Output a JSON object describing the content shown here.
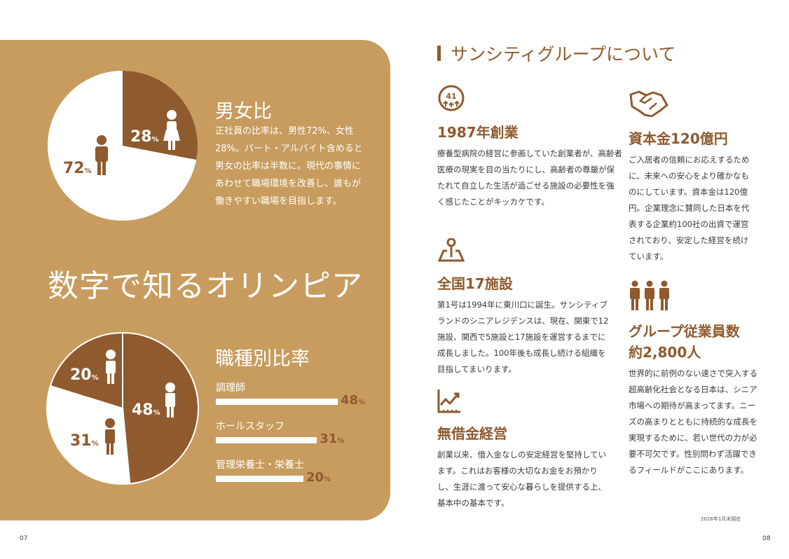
{
  "left": {
    "gender": {
      "title": "男女比",
      "text": "正社員の比率は、男性72%、女性28%。パート・アルバイト含めると男女の比率は半数に。現代の事情にあわせて職場環境を改善し、誰もが働きやすい職場を目指します。",
      "male": {
        "value": "72",
        "unit": "%"
      },
      "female": {
        "value": "28",
        "unit": "%"
      }
    },
    "headline": "数字で知るオリンピア",
    "jobs": {
      "title": "職種別比率",
      "items": [
        {
          "label": "調理師",
          "value": 48,
          "pct": "48",
          "unit": "%"
        },
        {
          "label": "ホールスタッフ",
          "value": 31,
          "pct": "31",
          "unit": "%"
        },
        {
          "label": "管理栄養士・栄養士",
          "value": 20,
          "pct": "20",
          "unit": "%"
        }
      ]
    },
    "page": "07",
    "colors": {
      "panel": "#c79c5e",
      "brown": "#8f5a2e",
      "white": "#ffffff"
    }
  },
  "right": {
    "title": "サンシティグループについて",
    "items": [
      {
        "icon": "anniversary-41-icon",
        "icon_text": "41",
        "title": "1987年創業",
        "text": "療養型病院の経営に参画していた創業者が、高齢者医療の現実を目の当たりにし、高齢者の尊厳が保たれて自立した生活が過ごせる施設の必要性を強く感じたことがキッカケです。"
      },
      {
        "icon": "handshake-icon",
        "title": "資本金120億円",
        "text": "ご入居者の信頼にお応えするために、未来への安心をより確かなものにしています。資本金は120億円。企業理念に賛同した日本を代表する企業約100社の出資で運営されており、安定した経営を続けています。"
      },
      {
        "icon": "map-pin-icon",
        "title": "全国17施設",
        "text": "第1号は1994年に東川口に誕生。サンシティブランドのシニアレジデンスは、現在、関東で12施設、関西で5施設と17施設を運営するまでに成長しました。100年後も成長し続ける組織を目指してまいります。"
      },
      {
        "icon": "people-icon",
        "title": "グループ従業員数",
        "title2": "約2,800人",
        "text": "世界的に前例のない速さで突入する超高齢化社会となる日本は、シニア市場への期待が高まってます。ニーズの高まりとともに持続的な成長を実現するために、若い世代の力が必要不可欠です。性別問わず活躍できるフィールドがここにあります。"
      },
      {
        "icon": "growth-chart-icon",
        "title": "無借金経営",
        "text": "創業以来、借入金なしの安定経営を堅持しています。これはお客様の大切なお金をお預かりし、生涯に渡って安心な暮らしを提供する上、基本中の基本です。"
      }
    ],
    "note": "2026年1月末現在",
    "page": "08"
  }
}
